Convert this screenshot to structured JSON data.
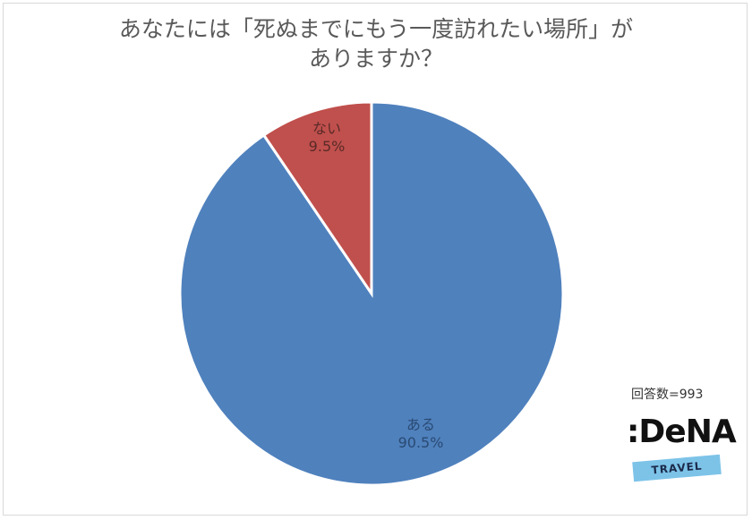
{
  "title": {
    "line1": "あなたには「死ぬまでにもう一度訪れたい場所」が",
    "line2": "ありますか？"
  },
  "chart_data": {
    "type": "pie",
    "title": "あなたには「死ぬまでにもう一度訪れたい場所」がありますか？",
    "categories": [
      "ある",
      "ない"
    ],
    "values": [
      90.5,
      9.5
    ],
    "unit": "%",
    "colors": [
      "#4f81bd",
      "#c0504d"
    ],
    "data_labels": [
      "ある 90.5%",
      "ない 9.5%"
    ],
    "start_angle": "12 o'clock, clockwise",
    "legend": "none"
  },
  "labels": {
    "yes": {
      "name": "ある",
      "value": "90.5%"
    },
    "no": {
      "name": "ない",
      "value": "9.5%"
    }
  },
  "footer": {
    "respondents": "回答数=993",
    "logo_text": ":DeNA",
    "logo_subtext": "TRAVEL"
  }
}
